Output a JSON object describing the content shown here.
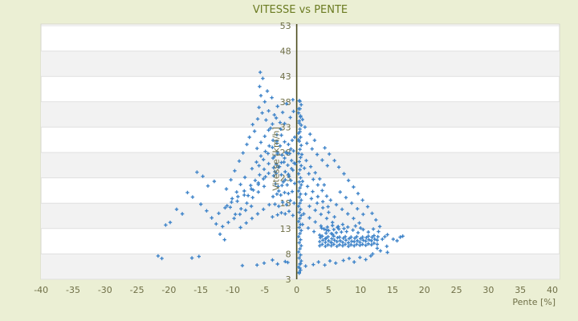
{
  "title": "VITESSE vs PENTE",
  "colors": {
    "page_background": "#ebefd4",
    "plot_background": "#ffffff",
    "band_alt": "#f2f2f2",
    "gridline": "#e0e0e0",
    "plot_border": "#d6d6cb",
    "axis_line": "#4b4b1c",
    "marker": "#3f84c9",
    "title_text": "#6b7b22",
    "tick_text": "#6f6f47"
  },
  "chart_data": {
    "type": "scatter",
    "title": "VITESSE vs PENTE",
    "xlabel": "Pente [%]",
    "ylabel": "Vitesse [km/h]",
    "xlim": [
      -40,
      40
    ],
    "ylim": [
      3,
      53
    ],
    "x_ticks": [
      -40,
      -35,
      -30,
      -25,
      -20,
      -15,
      -10,
      -5,
      0,
      5,
      10,
      15,
      20,
      25,
      30,
      35,
      40
    ],
    "y_ticks": [
      3,
      8,
      13,
      18,
      23,
      28,
      33,
      38,
      43,
      48,
      53
    ],
    "legend": "none",
    "grid": "horizontal-bands",
    "marker": "plus",
    "points": [
      [
        0.4,
        4.2
      ],
      [
        0.6,
        4.8
      ],
      [
        0.3,
        5.4
      ],
      [
        0.5,
        6
      ],
      [
        0.7,
        6.6
      ],
      [
        0.4,
        7.2
      ],
      [
        0.6,
        7.8
      ],
      [
        0.3,
        8.4
      ],
      [
        0.5,
        9
      ],
      [
        0.7,
        9.6
      ],
      [
        0.4,
        10.2
      ],
      [
        0.6,
        10.8
      ],
      [
        0.3,
        11.4
      ],
      [
        0.5,
        12
      ],
      [
        0.7,
        12.6
      ],
      [
        0.4,
        13.2
      ],
      [
        0.6,
        13.8
      ],
      [
        0.3,
        14.4
      ],
      [
        0.5,
        15
      ],
      [
        0.7,
        15.6
      ],
      [
        0.4,
        16.2
      ],
      [
        0.6,
        16.8
      ],
      [
        0.3,
        17.4
      ],
      [
        0.5,
        18
      ],
      [
        0.7,
        18.6
      ],
      [
        0.4,
        19.2
      ],
      [
        0.6,
        19.8
      ],
      [
        0.3,
        20.4
      ],
      [
        0.5,
        21
      ],
      [
        0.7,
        21.6
      ],
      [
        0.4,
        22.2
      ],
      [
        0.6,
        23
      ],
      [
        0.3,
        23.8
      ],
      [
        0.5,
        24.6
      ],
      [
        0.7,
        25.4
      ],
      [
        0.4,
        26.2
      ],
      [
        0.6,
        27
      ],
      [
        0.3,
        27.8
      ],
      [
        0.5,
        28.6
      ],
      [
        0.7,
        29.4
      ],
      [
        0.4,
        30.2
      ],
      [
        0.6,
        31
      ],
      [
        0.3,
        31.8
      ],
      [
        0.5,
        32.6
      ],
      [
        0.7,
        33.4
      ],
      [
        0.4,
        34.2
      ],
      [
        0.6,
        35
      ],
      [
        0.3,
        35.8
      ],
      [
        0.5,
        36.6
      ],
      [
        0.7,
        37.4
      ],
      [
        0.4,
        38.2
      ],
      [
        -8.8,
        13.2
      ],
      [
        -7.9,
        14.1
      ],
      [
        -7.0,
        15.0
      ],
      [
        -6.1,
        15.9
      ],
      [
        -5.2,
        16.8
      ],
      [
        -4.3,
        17.7
      ],
      [
        -9.6,
        15.8
      ],
      [
        -8.7,
        16.9
      ],
      [
        -7.8,
        18.0
      ],
      [
        -6.9,
        19.1
      ],
      [
        -6.0,
        20.2
      ],
      [
        -5.1,
        21.3
      ],
      [
        -10.4,
        17.2
      ],
      [
        -9.3,
        18.4
      ],
      [
        -8.2,
        19.6
      ],
      [
        -7.1,
        20.8
      ],
      [
        -6.0,
        22.0
      ],
      [
        -4.9,
        23.2
      ],
      [
        -7.6,
        19.5
      ],
      [
        -6.8,
        20.6
      ],
      [
        -6.0,
        21.7
      ],
      [
        -5.2,
        22.8
      ],
      [
        -4.4,
        23.9
      ],
      [
        -3.6,
        25.0
      ],
      [
        -6.5,
        22.5
      ],
      [
        -5.8,
        23.6
      ],
      [
        -5.1,
        24.7
      ],
      [
        -4.4,
        25.8
      ],
      [
        -3.7,
        26.9
      ],
      [
        -3.0,
        28.0
      ],
      [
        -5.9,
        25.4
      ],
      [
        -5.2,
        26.6
      ],
      [
        -4.5,
        27.8
      ],
      [
        -3.8,
        29.0
      ],
      [
        -3.1,
        30.2
      ],
      [
        -2.4,
        31.4
      ],
      [
        -4.9,
        28.2
      ],
      [
        -4.3,
        29.3
      ],
      [
        -3.7,
        30.4
      ],
      [
        -3.1,
        31.5
      ],
      [
        -2.5,
        32.6
      ],
      [
        -1.9,
        33.7
      ],
      [
        -6.2,
        28.8
      ],
      [
        -5.6,
        30.0
      ],
      [
        -5.0,
        31.2
      ],
      [
        -4.4,
        32.4
      ],
      [
        -3.8,
        33.6
      ],
      [
        -3.2,
        34.8
      ],
      [
        -3.4,
        24.2
      ],
      [
        -2.9,
        25.1
      ],
      [
        -2.4,
        26.0
      ],
      [
        -1.9,
        26.9
      ],
      [
        -1.4,
        27.8
      ],
      [
        -0.9,
        28.7
      ],
      [
        -2.8,
        20.4
      ],
      [
        -2.3,
        21.5
      ],
      [
        -1.8,
        22.6
      ],
      [
        -1.3,
        23.7
      ],
      [
        -0.8,
        24.8
      ],
      [
        -0.4,
        25.9
      ],
      [
        -12.2,
        16.0
      ],
      [
        -11.2,
        17.1
      ],
      [
        -10.2,
        18.2
      ],
      [
        -9.2,
        19.3
      ],
      [
        -8.2,
        20.4
      ],
      [
        -7.2,
        21.5
      ],
      [
        -11.6,
        13.4
      ],
      [
        -10.7,
        14.2
      ],
      [
        -9.8,
        15.0
      ],
      [
        -8.9,
        15.8
      ],
      [
        -8.0,
        16.6
      ],
      [
        -7.1,
        17.4
      ],
      [
        -3.8,
        15.3
      ],
      [
        -3.4,
        17.8
      ],
      [
        -3.7,
        19.3
      ],
      [
        -3.3,
        21.8
      ],
      [
        -3.6,
        23.4
      ],
      [
        -3.2,
        25.7
      ],
      [
        -3.5,
        27.2
      ],
      [
        -3.1,
        29.8
      ],
      [
        -3.0,
        15.7
      ],
      [
        -2.8,
        17.4
      ],
      [
        -3.1,
        19.8
      ],
      [
        -2.9,
        21.3
      ],
      [
        -3.2,
        23.9
      ],
      [
        -2.7,
        25.2
      ],
      [
        -3.0,
        27.7
      ],
      [
        -2.6,
        29.3
      ],
      [
        -2.4,
        16.1
      ],
      [
        -2.2,
        18.2
      ],
      [
        -2.5,
        19.6
      ],
      [
        -2.1,
        22.2
      ],
      [
        -2.4,
        23.6
      ],
      [
        -2.0,
        26.1
      ],
      [
        -2.3,
        27.5
      ],
      [
        -1.9,
        30.1
      ],
      [
        -1.8,
        15.9
      ],
      [
        -1.6,
        17.7
      ],
      [
        -1.9,
        20.1
      ],
      [
        -1.5,
        21.6
      ],
      [
        -1.8,
        24.2
      ],
      [
        -1.4,
        25.5
      ],
      [
        -1.7,
        28.0
      ],
      [
        -1.3,
        29.6
      ],
      [
        -1.2,
        16.4
      ],
      [
        -1.0,
        18.5
      ],
      [
        -1.3,
        19.9
      ],
      [
        -0.9,
        22.5
      ],
      [
        -1.2,
        23.3
      ],
      [
        -0.8,
        26.4
      ],
      [
        -1.1,
        27.8
      ],
      [
        -0.7,
        30.4
      ],
      [
        -0.6,
        15.6
      ],
      [
        -0.4,
        18.0
      ],
      [
        -0.7,
        20.3
      ],
      [
        -0.3,
        21.9
      ],
      [
        -0.6,
        24.5
      ],
      [
        -0.2,
        25.8
      ],
      [
        -0.5,
        28.3
      ],
      [
        -0.3,
        31.0
      ],
      [
        -7.4,
        31.0
      ],
      [
        -6.6,
        32.2
      ],
      [
        -6.9,
        33.5
      ],
      [
        -6.1,
        34.6
      ],
      [
        -5.4,
        35.8
      ],
      [
        -5.9,
        36.9
      ],
      [
        -5.0,
        38.0
      ],
      [
        -4.4,
        36.2
      ],
      [
        -4.8,
        34.4
      ],
      [
        -4.1,
        32.8
      ],
      [
        -3.5,
        35.4
      ],
      [
        -3.0,
        37.1
      ],
      [
        -2.6,
        33.9
      ],
      [
        -5.6,
        39.2
      ],
      [
        -4.6,
        40.1
      ],
      [
        -5.8,
        41.0
      ],
      [
        -5.3,
        42.6
      ],
      [
        -5.7,
        43.8
      ],
      [
        -3.9,
        38.8
      ],
      [
        -2.2,
        35.9
      ],
      [
        -1.6,
        37.6
      ],
      [
        -1.0,
        34.9
      ],
      [
        -0.6,
        38.4
      ],
      [
        -0.5,
        36.1
      ],
      [
        -7.8,
        29.6
      ],
      [
        -8.4,
        27.9
      ],
      [
        -9.0,
        26.3
      ],
      [
        -9.7,
        24.4
      ],
      [
        -10.3,
        22.6
      ],
      [
        -11.0,
        20.8
      ],
      [
        -21.7,
        7.6
      ],
      [
        -21.1,
        7.1
      ],
      [
        -16.4,
        7.2
      ],
      [
        -15.3,
        7.5
      ],
      [
        -20.5,
        13.7
      ],
      [
        -19.8,
        14.2
      ],
      [
        -17.1,
        20.1
      ],
      [
        -16.3,
        19.2
      ],
      [
        -15.0,
        17.8
      ],
      [
        -14.1,
        16.5
      ],
      [
        -13.3,
        15.1
      ],
      [
        -12.6,
        13.9
      ],
      [
        -17.9,
        15.9
      ],
      [
        -18.8,
        16.8
      ],
      [
        -13.9,
        21.4
      ],
      [
        -12.9,
        22.3
      ],
      [
        -12.0,
        11.9
      ],
      [
        -11.3,
        10.8
      ],
      [
        -14.7,
        23.3
      ],
      [
        -15.6,
        24.1
      ],
      [
        -7.0,
        24.8
      ],
      [
        -6.3,
        26.1
      ],
      [
        -5.6,
        27.3
      ],
      [
        -8.1,
        23.1
      ],
      [
        -8.8,
        21.7
      ],
      [
        -9.4,
        20.2
      ],
      [
        -10.1,
        18.9
      ],
      [
        -10.9,
        17.5
      ],
      [
        0.8,
        27.6
      ],
      [
        1.5,
        26.4
      ],
      [
        2.2,
        25.2
      ],
      [
        2.9,
        24.0
      ],
      [
        3.6,
        22.8
      ],
      [
        4.3,
        21.6
      ],
      [
        1.2,
        24.9
      ],
      [
        1.9,
        23.8
      ],
      [
        2.6,
        22.7
      ],
      [
        3.3,
        21.6
      ],
      [
        4.0,
        20.5
      ],
      [
        4.7,
        19.4
      ],
      [
        0.9,
        22.3
      ],
      [
        1.7,
        21.3
      ],
      [
        2.5,
        20.3
      ],
      [
        3.3,
        19.3
      ],
      [
        4.1,
        18.3
      ],
      [
        4.9,
        17.3
      ],
      [
        1.4,
        19.8
      ],
      [
        2.3,
        18.9
      ],
      [
        3.2,
        18.0
      ],
      [
        4.1,
        17.1
      ],
      [
        5.0,
        16.2
      ],
      [
        5.9,
        15.3
      ],
      [
        2.0,
        17.4
      ],
      [
        2.9,
        16.6
      ],
      [
        3.8,
        15.8
      ],
      [
        4.7,
        15.0
      ],
      [
        5.6,
        14.2
      ],
      [
        6.5,
        13.4
      ],
      [
        1.1,
        15.9
      ],
      [
        2.0,
        15.1
      ],
      [
        2.9,
        14.3
      ],
      [
        3.8,
        13.5
      ],
      [
        4.7,
        12.7
      ],
      [
        5.6,
        11.9
      ],
      [
        0.9,
        13.8
      ],
      [
        1.8,
        13.1
      ],
      [
        2.7,
        12.4
      ],
      [
        3.6,
        11.7
      ],
      [
        4.5,
        11.0
      ],
      [
        5.4,
        10.3
      ],
      [
        5.3,
        18.6
      ],
      [
        6.2,
        17.7
      ],
      [
        7.1,
        16.8
      ],
      [
        8.0,
        15.9
      ],
      [
        8.9,
        15.0
      ],
      [
        9.8,
        14.1
      ],
      [
        6.8,
        20.2
      ],
      [
        7.7,
        19.1
      ],
      [
        8.6,
        18.0
      ],
      [
        9.5,
        16.9
      ],
      [
        10.4,
        15.8
      ],
      [
        1.6,
        29.8
      ],
      [
        2.4,
        28.7
      ],
      [
        3.2,
        27.6
      ],
      [
        4.0,
        26.5
      ],
      [
        4.8,
        25.4
      ],
      [
        3.6,
        9.6
      ],
      [
        3.6,
        10.4
      ],
      [
        3.7,
        11.2
      ],
      [
        4.0,
        9.9
      ],
      [
        4.1,
        10.7
      ],
      [
        4.0,
        11.5
      ],
      [
        4.5,
        9.5
      ],
      [
        4.5,
        10.3
      ],
      [
        4.6,
        11.1
      ],
      [
        4.9,
        9.8
      ],
      [
        5.0,
        10.6
      ],
      [
        4.9,
        11.4
      ],
      [
        5.4,
        9.6
      ],
      [
        5.4,
        10.2
      ],
      [
        5.5,
        11.0
      ],
      [
        5.8,
        9.9
      ],
      [
        5.9,
        10.7
      ],
      [
        5.8,
        11.5
      ],
      [
        6.3,
        9.5
      ],
      [
        6.3,
        10.4
      ],
      [
        6.4,
        11.2
      ],
      [
        6.7,
        9.8
      ],
      [
        6.8,
        10.6
      ],
      [
        6.7,
        11.3
      ],
      [
        7.2,
        9.6
      ],
      [
        7.2,
        10.3
      ],
      [
        7.3,
        11.1
      ],
      [
        7.6,
        9.9
      ],
      [
        7.7,
        10.7
      ],
      [
        7.6,
        11.4
      ],
      [
        8.1,
        9.5
      ],
      [
        8.1,
        10.2
      ],
      [
        8.2,
        11.0
      ],
      [
        8.5,
        9.8
      ],
      [
        8.6,
        10.5
      ],
      [
        8.5,
        11.3
      ],
      [
        9.0,
        9.6
      ],
      [
        9.0,
        10.4
      ],
      [
        9.1,
        11.1
      ],
      [
        9.4,
        9.9
      ],
      [
        9.5,
        10.6
      ],
      [
        9.4,
        11.4
      ],
      [
        9.9,
        9.7
      ],
      [
        9.9,
        10.3
      ],
      [
        10.0,
        11.0
      ],
      [
        10.3,
        9.9
      ],
      [
        10.4,
        10.7
      ],
      [
        10.3,
        11.3
      ],
      [
        10.8,
        9.7
      ],
      [
        10.8,
        10.5
      ],
      [
        10.9,
        11.2
      ],
      [
        11.2,
        10.0
      ],
      [
        11.3,
        10.8
      ],
      [
        11.2,
        11.5
      ],
      [
        11.7,
        9.8
      ],
      [
        11.7,
        10.6
      ],
      [
        11.8,
        11.3
      ],
      [
        12.1,
        10.1
      ],
      [
        12.2,
        10.9
      ],
      [
        12.1,
        11.6
      ],
      [
        12.6,
        9.9
      ],
      [
        12.6,
        10.7
      ],
      [
        12.7,
        11.4
      ],
      [
        4.6,
        12.1
      ],
      [
        5.0,
        12.6
      ],
      [
        5.4,
        12.0
      ],
      [
        5.8,
        12.8
      ],
      [
        6.2,
        12.2
      ],
      [
        6.6,
        12.9
      ],
      [
        7.0,
        12.3
      ],
      [
        7.4,
        13.0
      ],
      [
        7.8,
        12.4
      ],
      [
        4.8,
        13.3
      ],
      [
        5.6,
        13.6
      ],
      [
        6.4,
        13.2
      ],
      [
        7.2,
        13.8
      ],
      [
        8.0,
        13.3
      ],
      [
        8.8,
        12.7
      ],
      [
        9.6,
        12.2
      ],
      [
        10.4,
        12.8
      ],
      [
        11.2,
        12.3
      ],
      [
        12.0,
        12.9
      ],
      [
        12.8,
        12.4
      ],
      [
        9.2,
        13.5
      ],
      [
        10.0,
        13.1
      ],
      [
        3.9,
        13.1
      ],
      [
        4.3,
        12.9
      ],
      [
        13.4,
        10.9
      ],
      [
        13.8,
        11.4
      ],
      [
        14.2,
        11.8
      ],
      [
        14.1,
        9.5
      ],
      [
        14.2,
        8.3
      ],
      [
        15.1,
        10.9
      ],
      [
        15.7,
        10.6
      ],
      [
        16.2,
        11.3
      ],
      [
        16.6,
        11.5
      ],
      [
        12.6,
        9.1
      ],
      [
        13.1,
        8.6
      ],
      [
        11.9,
        8.0
      ],
      [
        -8.5,
        5.7
      ],
      [
        -6.2,
        5.8
      ],
      [
        -5.1,
        6.2
      ],
      [
        -3.8,
        6.8
      ],
      [
        -3.0,
        6.0
      ],
      [
        -1.8,
        6.5
      ],
      [
        -1.4,
        6.3
      ],
      [
        0.5,
        5.2
      ],
      [
        0.4,
        4.4
      ],
      [
        0.6,
        6.1
      ],
      [
        1.4,
        5.6
      ],
      [
        2.6,
        5.9
      ],
      [
        3.4,
        6.4
      ],
      [
        4.4,
        5.8
      ],
      [
        5.2,
        6.6
      ],
      [
        6.1,
        6.2
      ],
      [
        7.3,
        6.7
      ],
      [
        8.2,
        7.1
      ],
      [
        9.0,
        6.4
      ],
      [
        9.9,
        7.3
      ],
      [
        10.8,
        6.9
      ],
      [
        11.6,
        7.6
      ],
      [
        0.3,
        30.5
      ],
      [
        0.5,
        32.1
      ],
      [
        0.4,
        33.8
      ],
      [
        0.6,
        35.2
      ],
      [
        0.3,
        36.6
      ],
      [
        0.5,
        38.1
      ],
      [
        2.1,
        31.6
      ],
      [
        2.8,
        30.4
      ],
      [
        1.3,
        33.0
      ],
      [
        0.9,
        34.5
      ],
      [
        4.4,
        28.9
      ],
      [
        5.1,
        27.7
      ],
      [
        5.9,
        26.4
      ],
      [
        6.6,
        25.1
      ],
      [
        7.4,
        23.8
      ],
      [
        8.1,
        22.5
      ],
      [
        8.9,
        21.2
      ],
      [
        9.6,
        19.9
      ],
      [
        10.3,
        18.6
      ],
      [
        11.1,
        17.3
      ],
      [
        11.8,
        16.0
      ],
      [
        12.4,
        14.7
      ],
      [
        13.0,
        13.4
      ]
    ]
  }
}
